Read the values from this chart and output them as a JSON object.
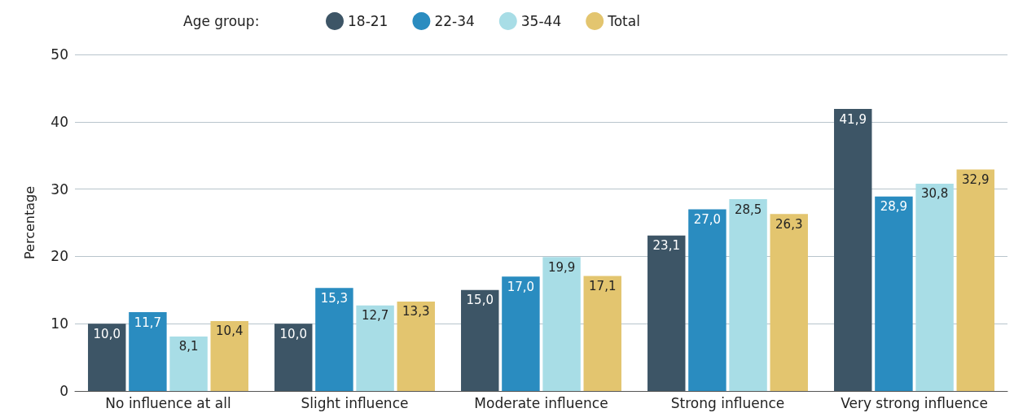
{
  "chart_data": {
    "type": "bar",
    "ylabel": "Percentage",
    "legend_title": "Age group:",
    "categories": [
      "No influence at all",
      "Slight influence",
      "Moderate influence",
      "Strong influence",
      "Very strong influence"
    ],
    "series": [
      {
        "name": "18-21",
        "color": "#3d5566",
        "values": [
          10.0,
          10.0,
          15.0,
          23.1,
          41.9
        ],
        "value_labels": [
          "10,0",
          "10,0",
          "15,0",
          "23,1",
          "41,9"
        ]
      },
      {
        "name": "22-34",
        "color": "#2a8cc0",
        "values": [
          11.7,
          15.3,
          17.0,
          27.0,
          28.9
        ],
        "value_labels": [
          "11,7",
          "15,3",
          "17,0",
          "27,0",
          "28,9"
        ]
      },
      {
        "name": "35-44",
        "color": "#a8dde6",
        "values": [
          8.1,
          12.7,
          19.9,
          28.5,
          30.8
        ],
        "value_labels": [
          "8,1",
          "12,7",
          "19,9",
          "28,5",
          "30,8"
        ]
      },
      {
        "name": "Total",
        "color": "#e3c56f",
        "values": [
          10.4,
          13.3,
          17.1,
          26.3,
          32.9
        ],
        "value_labels": [
          "10,4",
          "13,3",
          "17,1",
          "26,3",
          "32,9"
        ]
      }
    ],
    "ylim": [
      0,
      50
    ],
    "yticks": [
      0,
      10,
      20,
      30,
      40,
      50
    ],
    "grid": "y",
    "legend": "top"
  }
}
